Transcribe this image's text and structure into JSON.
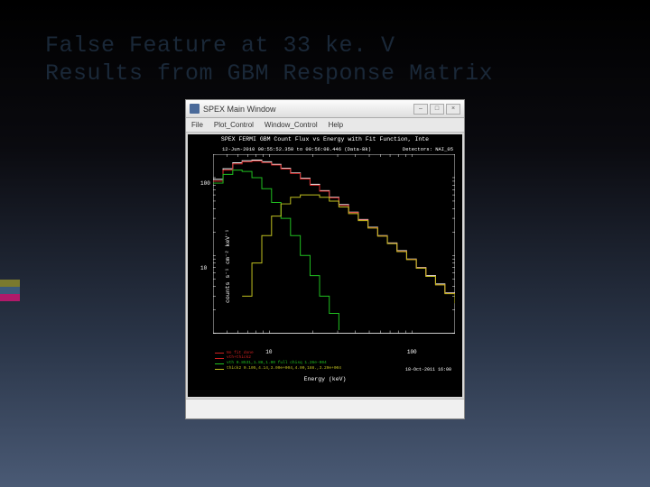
{
  "slide": {
    "title_line1": "False Feature at 33 ke. V",
    "title_line2": "Results from GBM Response Matrix",
    "accent_colors": [
      "#7a7a2e",
      "#3b5a7a",
      "#b01a6a"
    ]
  },
  "window": {
    "title": "SPEX Main Window",
    "menu": {
      "file": "File",
      "plot": "Plot_Control",
      "window": "Window_Control",
      "help": "Help"
    }
  },
  "chart": {
    "type": "line",
    "title": "SPEX FERMI GBM Count Flux vs Energy with Fit Function, Inte",
    "subtitle_left": "12-Jun-2010 00:55:52.350 to 00:56:08.446 (Data-Bk)",
    "subtitle_right": "Detectors: NAI_05",
    "ylabel": "counts s⁻¹ cm⁻² keV⁻¹",
    "xlabel": "Energy (keV)",
    "background_color": "#000000",
    "text_color": "#ffffff",
    "axis_color": "#ffffff",
    "xlim": [
      4,
      200
    ],
    "ylim": [
      1,
      200
    ],
    "xscale": "log",
    "yscale": "log",
    "xticks": [
      {
        "v": 10,
        "label": "10"
      },
      {
        "v": 100,
        "label": "100"
      }
    ],
    "yticks": [
      {
        "v": 10,
        "label": "10"
      },
      {
        "v": 100,
        "label": "100"
      }
    ],
    "series": [
      {
        "name": "data",
        "color": "#ffffff",
        "style": "step",
        "width": 1,
        "x": [
          4,
          4.7,
          5.5,
          6.4,
          7.5,
          8.8,
          10.3,
          12,
          14,
          16.4,
          19.2,
          22.4,
          26.2,
          30.6,
          35.8,
          41.9,
          49,
          57.3,
          67,
          78.3,
          91.5,
          107,
          125,
          146,
          170,
          200
        ],
        "y": [
          95,
          130,
          155,
          165,
          168,
          160,
          148,
          132,
          115,
          98,
          82,
          68,
          56,
          45,
          36,
          29,
          23,
          18,
          14.5,
          11.5,
          9,
          7,
          5.5,
          4.3,
          3.3,
          2.5
        ]
      },
      {
        "name": "vth-thick2-fit",
        "color": "#d02020",
        "style": "step",
        "width": 1,
        "x": [
          4,
          4.7,
          5.5,
          6.4,
          7.5,
          8.8,
          10.3,
          12,
          14,
          16.4,
          19.2,
          22.4,
          26.2,
          30.6,
          35.8,
          41.9,
          49,
          57.3,
          67,
          78.3,
          91.5,
          107,
          125,
          146,
          170,
          200
        ],
        "y": [
          90,
          125,
          150,
          160,
          163,
          156,
          145,
          129,
          113,
          96,
          80,
          67,
          55,
          44,
          35.5,
          28.5,
          22.7,
          17.8,
          14.3,
          11.3,
          8.9,
          6.9,
          5.4,
          4.2,
          3.25,
          2.45
        ]
      },
      {
        "name": "vth-component",
        "color": "#20c020",
        "style": "step",
        "width": 1,
        "x": [
          4,
          4.7,
          5.5,
          6.4,
          7.5,
          8.8,
          10.3,
          12,
          14,
          16.4,
          19.2,
          22.4,
          26.2,
          30.6
        ],
        "y": [
          85,
          110,
          125,
          120,
          100,
          72,
          48,
          30,
          18,
          10,
          5.5,
          3,
          1.8,
          1.1
        ]
      },
      {
        "name": "thick2-component",
        "color": "#c0c020",
        "style": "step",
        "width": 1,
        "x": [
          6.4,
          7.5,
          8.8,
          10.3,
          12,
          14,
          16.4,
          19.2,
          22.4,
          26.2,
          30.6,
          35.8,
          41.9,
          49,
          57.3,
          67,
          78.3,
          91.5,
          107,
          125,
          146,
          170,
          200
        ],
        "y": [
          3,
          8,
          18,
          32,
          46,
          56,
          60,
          60,
          56,
          50,
          42,
          34.5,
          28,
          22.5,
          17.7,
          14.2,
          11.2,
          8.85,
          6.85,
          5.38,
          4.18,
          3.23,
          2.43
        ]
      }
    ],
    "legend": {
      "items": [
        {
          "color": "#d02020",
          "text": "No fit done"
        },
        {
          "color": "#d02020",
          "text": "vth+thick2"
        },
        {
          "color": "#20c020",
          "text": "vth 0.8531,1.88,1.00   full chisq 1.26e-004"
        },
        {
          "color": "#c0c020",
          "text": "thick2 0.105,4.14,3.00e+004,4.00,188.,3.20e+004"
        }
      ]
    },
    "datestamp": "18-Oct-2011 16:00"
  }
}
